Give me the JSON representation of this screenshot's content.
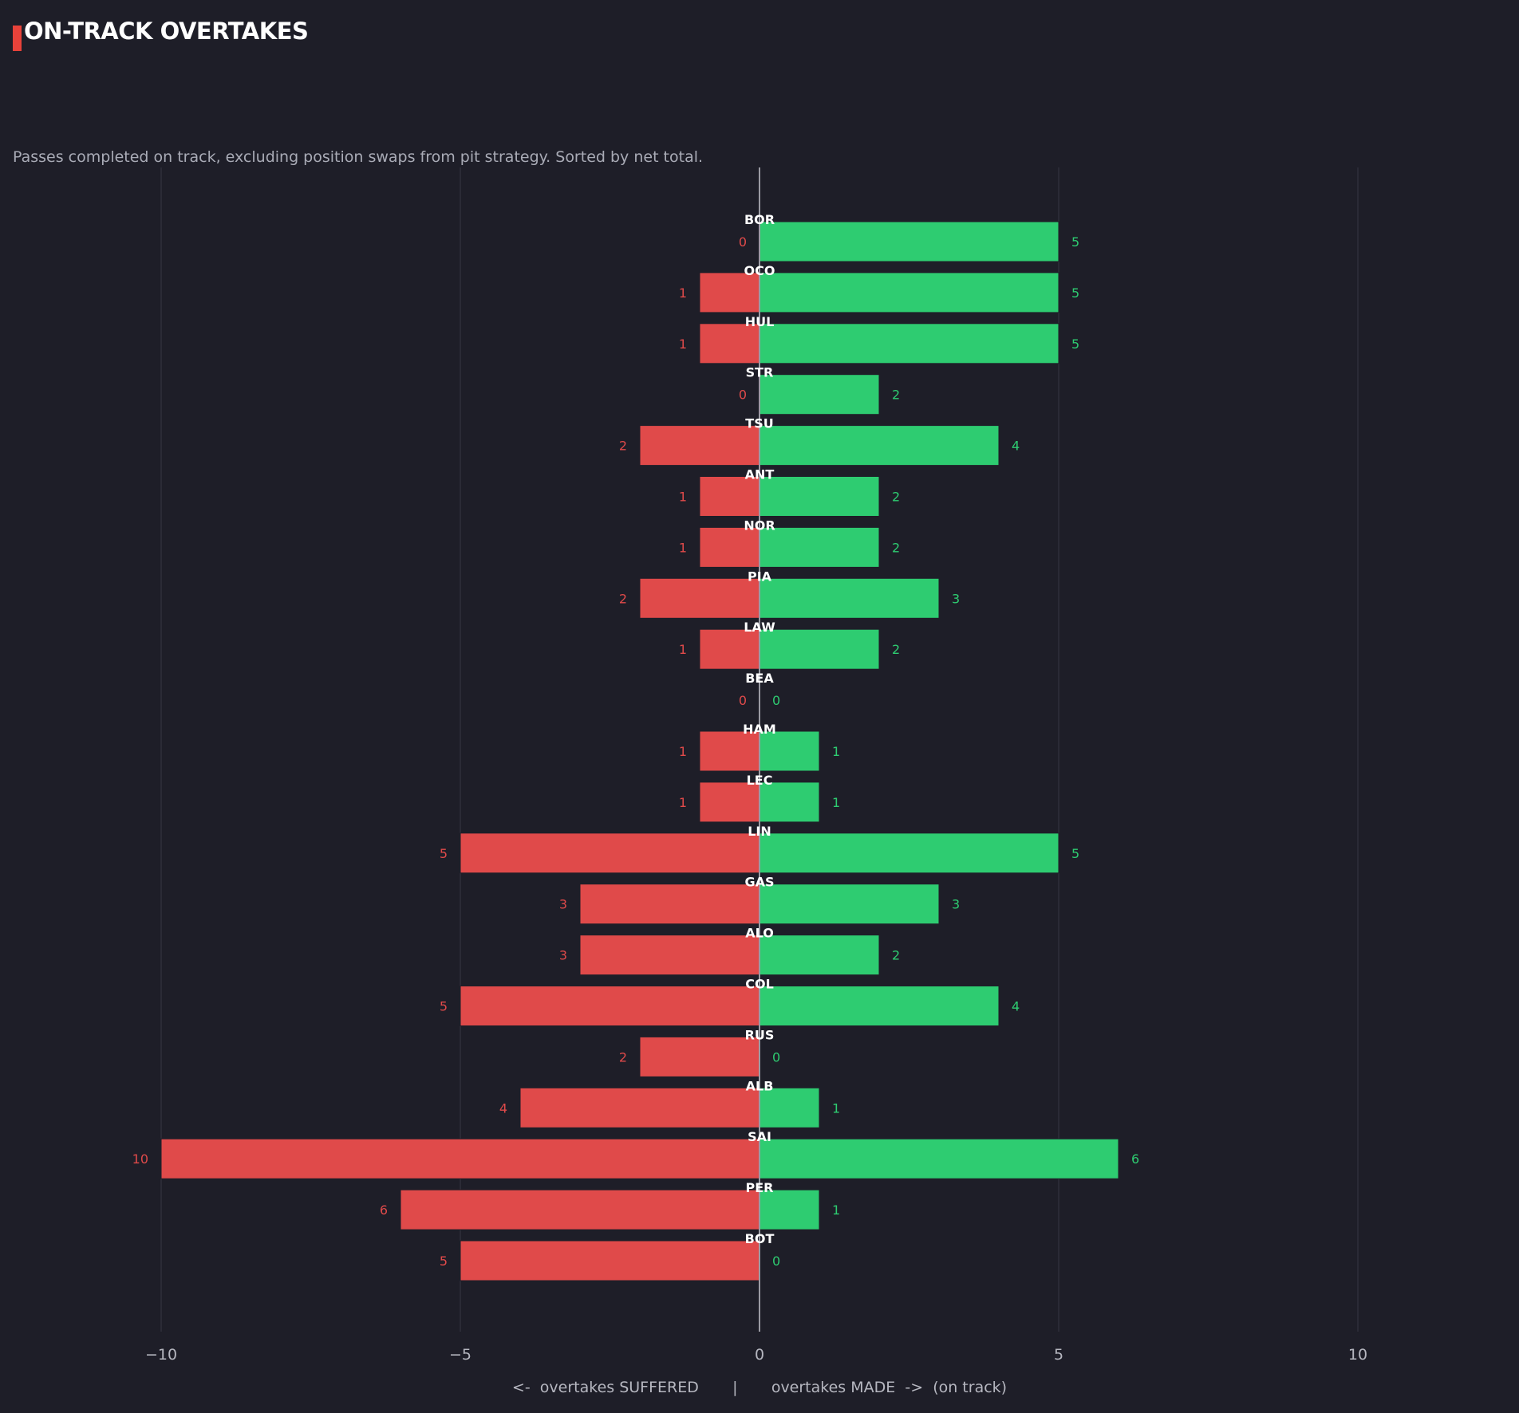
{
  "title": "ON-TRACK OVERTAKES",
  "subtitle": "Passes completed on track, excluding position swaps from pit strategy. Sorted by net total.",
  "colors": {
    "background": "#1e1e28",
    "accent": "#e8423a",
    "made": "#2ecc71",
    "suffered": "#e04a4a",
    "grid": "#34343f",
    "zero_line": "#9a9aa3"
  },
  "chart_data": {
    "type": "bar",
    "orientation": "horizontal-diverging",
    "categories": [
      "BOR",
      "OCO",
      "HUL",
      "STR",
      "TSU",
      "ANT",
      "NOR",
      "PIA",
      "LAW",
      "BEA",
      "HAM",
      "LEC",
      "LIN",
      "GAS",
      "ALO",
      "COL",
      "RUS",
      "ALB",
      "SAI",
      "PER",
      "BOT"
    ],
    "series": [
      {
        "values": [
          5,
          5,
          5,
          2,
          4,
          2,
          2,
          3,
          2,
          0,
          1,
          1,
          5,
          3,
          2,
          4,
          0,
          1,
          6,
          1,
          0
        ]
      },
      {
        "values": [
          0,
          1,
          1,
          0,
          2,
          1,
          1,
          2,
          1,
          0,
          1,
          1,
          5,
          3,
          3,
          5,
          2,
          4,
          10,
          6,
          5
        ]
      }
    ],
    "xlabel": "<-  overtakes SUFFERED       |       overtakes MADE  ->  (on track)",
    "xlim": [
      -12.5,
      12.5
    ],
    "xticks": [
      -10,
      -5,
      0,
      5,
      10
    ],
    "xtick_labels": [
      "−10",
      "−5",
      "0",
      "5",
      "10"
    ],
    "grid": true
  }
}
